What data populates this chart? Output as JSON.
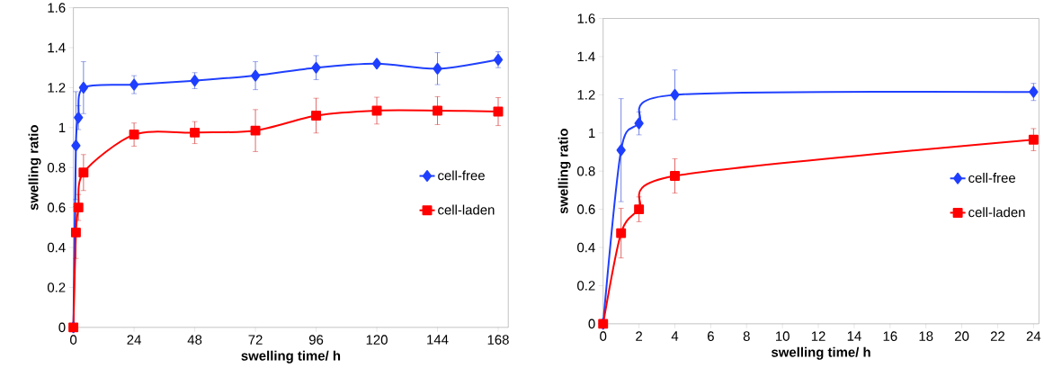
{
  "chart_data": [
    {
      "type": "line",
      "xlabel": "swelling time/ h",
      "ylabel": "swelling ratio",
      "x": [
        0,
        1,
        2,
        4,
        24,
        48,
        72,
        96,
        120,
        144,
        168
      ],
      "xlim": [
        0,
        172
      ],
      "xticks": [
        0,
        24,
        48,
        72,
        96,
        120,
        144,
        168
      ],
      "ylim": [
        0,
        1.6
      ],
      "yticks": [
        0,
        0.2,
        0.4,
        0.6,
        0.8,
        1,
        1.2,
        1.4,
        1.6
      ],
      "grid": false,
      "legend": "right",
      "line_style": "solid",
      "series": [
        {
          "name": "cell-free",
          "color": "#1f3fff",
          "marker": "diamond",
          "values": [
            0,
            0.91,
            1.05,
            1.2,
            1.215,
            1.235,
            1.26,
            1.3,
            1.32,
            1.295,
            1.34
          ],
          "errors": [
            null,
            0.27,
            0.06,
            0.13,
            0.045,
            0.04,
            0.07,
            0.06,
            0.01,
            0.08,
            0.04
          ]
        },
        {
          "name": "cell-laden",
          "color": "#ff0000",
          "marker": "square",
          "values": [
            0,
            0.475,
            0.6,
            0.775,
            0.965,
            0.975,
            0.985,
            1.06,
            1.085,
            1.085,
            1.08
          ],
          "errors": [
            null,
            0.13,
            0.065,
            0.09,
            0.058,
            0.055,
            0.105,
            0.087,
            0.067,
            0.07,
            0.07
          ]
        }
      ]
    },
    {
      "type": "line",
      "xlabel": "swelling time/ h",
      "ylabel": "swelling ratio",
      "x": [
        0,
        1,
        2,
        4,
        24
      ],
      "xlim": [
        0,
        24.3
      ],
      "xticks": [
        0,
        2,
        4,
        6,
        8,
        10,
        12,
        14,
        16,
        18,
        20,
        22,
        24
      ],
      "ylim": [
        0,
        1.6
      ],
      "yticks": [
        0,
        0.2,
        0.4,
        0.6,
        0.8,
        1,
        1.2,
        1.4,
        1.6
      ],
      "grid": false,
      "legend": "right",
      "line_style": "solid",
      "series": [
        {
          "name": "cell-free",
          "color": "#1f3fff",
          "marker": "diamond",
          "values": [
            0,
            0.91,
            1.05,
            1.2,
            1.215
          ],
          "errors": [
            null,
            0.27,
            0.06,
            0.13,
            0.045
          ]
        },
        {
          "name": "cell-laden",
          "color": "#ff0000",
          "marker": "square",
          "values": [
            0,
            0.475,
            0.6,
            0.775,
            0.965
          ],
          "errors": [
            null,
            0.13,
            0.065,
            0.09,
            0.058
          ]
        }
      ]
    }
  ]
}
